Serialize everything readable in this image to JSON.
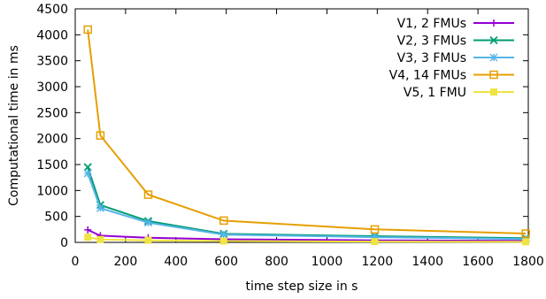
{
  "chart_data": {
    "type": "line",
    "xlabel": "time step size in s",
    "ylabel": "Computational time in ms",
    "xlim": [
      0,
      1800
    ],
    "ylim": [
      0,
      4500
    ],
    "xticks": [
      0,
      200,
      400,
      600,
      800,
      1000,
      1200,
      1400,
      1600,
      1800
    ],
    "yticks": [
      0,
      500,
      1000,
      1500,
      2000,
      2500,
      3000,
      3500,
      4000,
      4500
    ],
    "grid": false,
    "legend_position": "top-right",
    "x": [
      50,
      100,
      290,
      590,
      1190,
      1790
    ],
    "series": [
      {
        "name": "V1, 2 FMUs",
        "color": "#9400d3",
        "marker": "plus",
        "values": [
          240,
          130,
          90,
          60,
          40,
          30
        ]
      },
      {
        "name": "V2, 3 FMUs",
        "color": "#009e73",
        "marker": "x",
        "values": [
          1450,
          720,
          410,
          165,
          120,
          80
        ]
      },
      {
        "name": "V3, 3 FMUs",
        "color": "#56b4e9",
        "marker": "star",
        "values": [
          1330,
          660,
          380,
          150,
          100,
          65
        ]
      },
      {
        "name": "V4, 14 FMUs",
        "color": "#e69f00",
        "marker": "open-square",
        "values": [
          4100,
          2060,
          920,
          420,
          250,
          170
        ]
      },
      {
        "name": "V5, 1 FMU",
        "color": "#f0e442",
        "marker": "filled-square",
        "values": [
          100,
          55,
          40,
          25,
          15,
          10
        ]
      }
    ]
  }
}
